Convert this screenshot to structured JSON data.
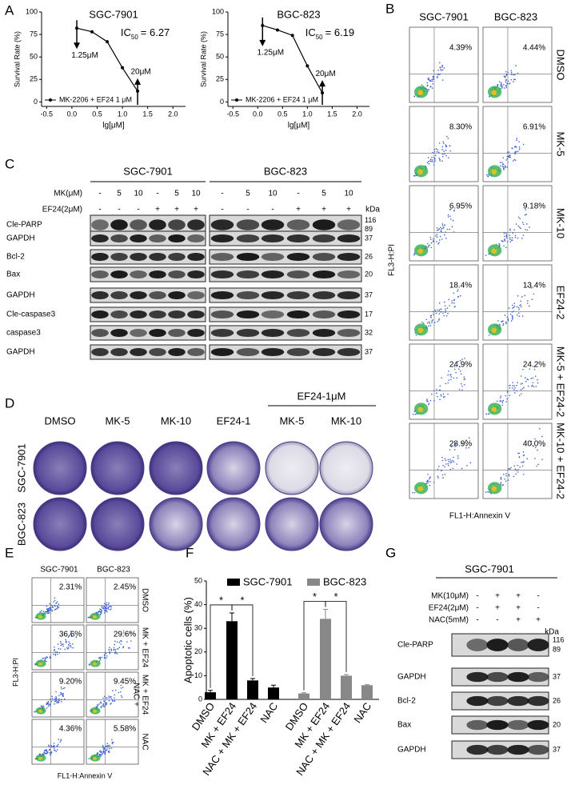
{
  "panel_labels": [
    "A",
    "B",
    "C",
    "D",
    "E",
    "F",
    "G"
  ],
  "chart_data": [
    {
      "type": "line",
      "title": "SGC-7901",
      "x": [
        0.097,
        0.398,
        0.699,
        1.0,
        1.301
      ],
      "values": [
        82,
        78,
        67,
        38,
        12
      ],
      "color": "#000000",
      "xlim": [
        -0.6,
        2.25
      ],
      "xticks": [
        -0.5,
        {
          "value": 0,
          "label": "0.0"
        },
        0.5,
        {
          "value": 1,
          "label": "1.0"
        },
        1.5,
        {
          "value": 2,
          "label": "2.0"
        }
      ],
      "ylim": [
        -5,
        100
      ],
      "yticks": [
        0,
        25,
        50,
        75,
        100
      ],
      "xlabel": "lg[μM]",
      "ylabel": "Survival Rate (%)",
      "legend": "MK-2206 + EF24 1 μM",
      "annotations": [
        "1.25μM",
        "20μM"
      ],
      "ic50": [
        "IC",
        "50",
        "= 6.27"
      ]
    },
    {
      "type": "line",
      "title": "BGC-823",
      "x": [
        0.097,
        0.398,
        0.699,
        1.0,
        1.301
      ],
      "values": [
        85,
        80,
        74,
        40,
        10
      ],
      "color": "#000000",
      "xlim": [
        -0.6,
        2.25
      ],
      "xticks": [
        -0.5,
        {
          "value": 0,
          "label": "0.0"
        },
        0.5,
        {
          "value": 1,
          "label": "1.0"
        },
        1.5,
        {
          "value": 2,
          "label": "2.0"
        }
      ],
      "ylim": [
        -5,
        100
      ],
      "yticks": [
        0,
        25,
        50,
        75,
        100
      ],
      "xlabel": "lg[μM]",
      "ylabel": "Survival Rate (%)",
      "legend": "MK-2206 + EF24 1 μM",
      "annotations": [
        "1.25μM",
        "20μM"
      ],
      "ic50": [
        "IC",
        "50",
        "= 6.19"
      ]
    },
    {
      "type": "bar",
      "categories": [
        "DMSO",
        "MK + EF24",
        "NAC + MK + EF24",
        "NAC"
      ],
      "series": [
        {
          "name": "SGC-7901",
          "color": "#000000",
          "values": [
            3,
            33,
            8,
            5
          ],
          "errors": [
            0.8,
            3.5,
            0.8,
            1
          ]
        },
        {
          "name": "BGC-823",
          "color": "#888888",
          "values": [
            2.5,
            34,
            10,
            6
          ],
          "errors": [
            0.3,
            4,
            0.5,
            0.2
          ]
        }
      ],
      "ylim": [
        0,
        50
      ],
      "yticks": [
        0,
        10,
        20,
        30,
        40,
        50
      ],
      "ylabel": "Apoptotic cells (%)",
      "significance": "*"
    }
  ],
  "flow_b": {
    "columns": [
      "SGC-7901",
      "BGC-823"
    ],
    "rows": [
      "DMSO",
      "MK-5",
      "MK-10",
      "EF24-2",
      "MK-5 + EF24-2",
      "MK-10 + EF24-2"
    ],
    "percentages": [
      [
        "4.39%",
        "4.44%"
      ],
      [
        "8.30%",
        "6.91%"
      ],
      [
        "6.95%",
        "9.18%"
      ],
      [
        "18.4%",
        "13.4%"
      ],
      [
        "24.9%",
        "24.2%"
      ],
      [
        "28.9%",
        "40.0%"
      ]
    ],
    "ylabel": "FL3-H:PI",
    "xlabel": "FL1-H:Annexin V"
  },
  "blot_c": {
    "groups": [
      "SGC-7901",
      "BGC-823"
    ],
    "treatments": [
      {
        "label": "MK(μM)",
        "lanes": [
          "-",
          "5",
          "10",
          "-",
          "5",
          "10"
        ]
      },
      {
        "label": "EF24(2μM)",
        "lanes": [
          "-",
          "-",
          "-",
          "+",
          "+",
          "+"
        ]
      }
    ],
    "unit": "kDa",
    "rows": [
      {
        "label": "Cle-PARP",
        "kda": [
          116,
          89
        ]
      },
      {
        "label": "GAPDH",
        "kda": [
          37
        ]
      },
      {
        "label": "Bcl-2",
        "kda": [
          26
        ]
      },
      {
        "label": "Bax",
        "kda": [
          20
        ]
      },
      {
        "label": "GAPDH",
        "kda": [
          37
        ]
      },
      {
        "label": "Cle-caspase3",
        "kda": [
          17
        ]
      },
      {
        "label": "caspase3",
        "kda": [
          32
        ]
      },
      {
        "label": "GAPDH",
        "kda": [
          37
        ]
      }
    ]
  },
  "colony_d": {
    "columns": [
      "DMSO",
      "MK-5",
      "MK-10",
      "EF24-1",
      "MK-5",
      "MK-10"
    ],
    "combo_header": "EF24-1μM",
    "rows": [
      "SGC-7901",
      "BGC-823"
    ]
  },
  "flow_e": {
    "columns": [
      "SGC-7901",
      "BGC-823"
    ],
    "rows": [
      [
        "DMSO"
      ],
      [
        "MK + EF24"
      ],
      [
        "NAC +",
        "MK + EF24"
      ],
      [
        "NAC"
      ]
    ],
    "percentages": [
      [
        "2.31%",
        "2.45%"
      ],
      [
        "36.6%",
        "29.6%"
      ],
      [
        "9.20%",
        "9.45%"
      ],
      [
        "4.36%",
        "5.58%"
      ]
    ],
    "ylabel": "FL3-H:PI",
    "xlabel": "FL1-H:Annexin V"
  },
  "blot_g": {
    "title": "SGC-7901",
    "treatments": [
      {
        "label": "MK(10μM)",
        "lanes": [
          "-",
          "+",
          "+",
          "-"
        ]
      },
      {
        "label": "EF24(2μM)",
        "lanes": [
          "-",
          "+",
          "+",
          "-"
        ]
      },
      {
        "label": "NAC(5mM)",
        "lanes": [
          "-",
          "-",
          "+",
          "+"
        ]
      }
    ],
    "unit": "kDa",
    "rows": [
      {
        "label": "Cle-PARP",
        "kda": [
          116,
          89
        ]
      },
      {
        "label": "GAPDH",
        "kda": [
          37
        ]
      },
      {
        "label": "Bcl-2",
        "kda": [
          26
        ]
      },
      {
        "label": "Bax",
        "kda": [
          20
        ]
      },
      {
        "label": "GAPDH",
        "kda": [
          37
        ]
      }
    ]
  }
}
